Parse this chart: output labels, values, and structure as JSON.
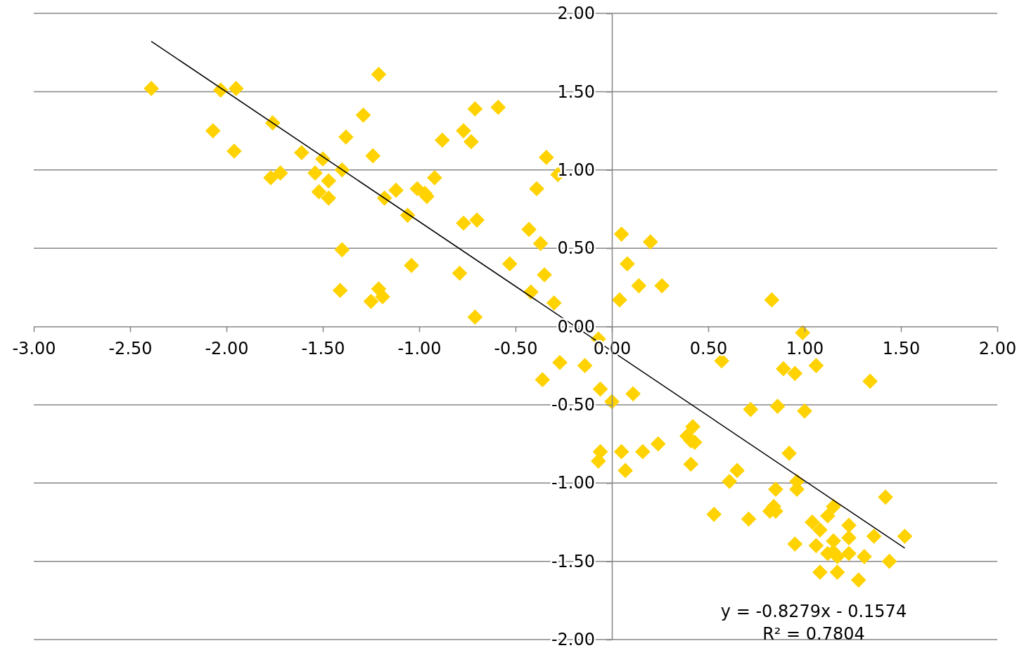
{
  "chart_data": {
    "type": "scatter",
    "marker": "diamond",
    "grid": "y",
    "xlim": [
      -3,
      2
    ],
    "ylim": [
      -2,
      2
    ],
    "xticks": [
      {
        "value": -3,
        "label": "-3.00"
      },
      {
        "value": -2.5,
        "label": "-2.50"
      },
      {
        "value": -2,
        "label": "-2.00"
      },
      {
        "value": -1.5,
        "label": "-1.50"
      },
      {
        "value": -1,
        "label": "-1.00"
      },
      {
        "value": -0.5,
        "label": "-0.50"
      },
      {
        "value": 0,
        "label": "0.00"
      },
      {
        "value": 0.5,
        "label": "0.50"
      },
      {
        "value": 1,
        "label": "1.00"
      },
      {
        "value": 1.5,
        "label": "1.50"
      },
      {
        "value": 2,
        "label": "2.00"
      }
    ],
    "yticks": [
      {
        "value": -2,
        "label": "-2.00"
      },
      {
        "value": -1.5,
        "label": "-1.50"
      },
      {
        "value": -1,
        "label": "-1.00"
      },
      {
        "value": -0.5,
        "label": "-0.50"
      },
      {
        "value": 0,
        "label": "0.00"
      },
      {
        "value": 0.5,
        "label": "0.50"
      },
      {
        "value": 1,
        "label": "1.00"
      },
      {
        "value": 1.5,
        "label": "1.50"
      },
      {
        "value": 2,
        "label": "2.00"
      }
    ],
    "series": [
      {
        "color": "#ffd200",
        "x": [
          -2.39,
          -2.03,
          -1.95,
          -2.07,
          -1.96,
          -1.76,
          -1.77,
          -1.72,
          -1.61,
          -1.54,
          -1.5,
          -1.52,
          -1.47,
          -1.47,
          -1.4,
          -1.38,
          -1.4,
          -1.41,
          -1.29,
          -1.21,
          -1.24,
          -1.18,
          -1.12,
          -1.25,
          -1.21,
          -1.19,
          -1.06,
          -1.04,
          -1.01,
          -0.97,
          -0.96,
          -0.92,
          -0.88,
          -0.77,
          -0.73,
          -0.71,
          -0.77,
          -0.7,
          -0.79,
          -0.71,
          -0.59,
          -0.53,
          -0.43,
          -0.42,
          -0.39,
          -0.37,
          -0.35,
          -0.34,
          -0.28,
          -0.3,
          -0.36,
          -0.27,
          -0.14,
          -0.07,
          -0.06,
          0.0,
          -0.06,
          -0.07,
          0.05,
          0.04,
          0.08,
          0.14,
          0.2,
          0.26,
          0.05,
          0.07,
          0.11,
          0.16,
          0.24,
          0.39,
          0.41,
          0.42,
          0.43,
          0.41,
          0.53,
          0.57,
          0.61,
          0.65,
          0.71,
          0.72,
          0.83,
          0.86,
          0.89,
          0.92,
          0.95,
          0.99,
          1.0,
          1.06,
          0.85,
          0.96,
          0.96,
          0.84,
          0.82,
          0.85,
          0.95,
          1.04,
          1.08,
          1.06,
          1.08,
          1.12,
          1.15,
          1.15,
          1.12,
          1.15,
          1.17,
          1.17,
          1.23,
          1.23,
          1.23,
          1.31,
          1.28,
          1.34,
          1.36,
          1.42,
          1.44,
          1.52
        ],
        "values": [
          1.52,
          1.51,
          1.52,
          1.25,
          1.12,
          1.3,
          0.95,
          0.98,
          1.11,
          0.98,
          1.07,
          0.86,
          0.93,
          0.82,
          1.0,
          1.21,
          0.49,
          0.23,
          1.35,
          1.61,
          1.09,
          0.82,
          0.87,
          0.16,
          0.24,
          0.19,
          0.71,
          0.39,
          0.88,
          0.85,
          0.83,
          0.95,
          1.19,
          1.25,
          1.18,
          1.39,
          0.66,
          0.68,
          0.34,
          0.06,
          1.4,
          0.4,
          0.62,
          0.22,
          0.88,
          0.53,
          0.33,
          1.08,
          0.97,
          0.15,
          -0.34,
          -0.23,
          -0.25,
          -0.08,
          -0.4,
          -0.48,
          -0.8,
          -0.86,
          0.59,
          0.17,
          0.4,
          0.26,
          0.54,
          0.26,
          -0.8,
          -0.92,
          -0.43,
          -0.8,
          -0.75,
          -0.7,
          -0.73,
          -0.64,
          -0.74,
          -0.88,
          -1.2,
          -0.22,
          -0.99,
          -0.92,
          -1.23,
          -0.53,
          0.17,
          -0.51,
          -0.27,
          -0.81,
          -0.3,
          -0.04,
          -0.54,
          -0.25,
          -1.04,
          -0.99,
          -1.04,
          -1.15,
          -1.18,
          -1.18,
          -1.39,
          -1.25,
          -1.3,
          -1.4,
          -1.57,
          -1.21,
          -1.15,
          -1.37,
          -1.45,
          -1.44,
          -1.47,
          -1.57,
          -1.27,
          -1.35,
          -1.45,
          -1.47,
          -1.62,
          -0.35,
          -1.34,
          -1.09,
          -1.5,
          -1.34
        ]
      },
      {
        "type": "line",
        "color": "#000000",
        "marker": "none",
        "x": [
          -2.39,
          1.52
        ],
        "values": [
          1.821,
          -1.416
        ]
      }
    ],
    "annotations": [
      "y = -0.8279x - 0.1574",
      "R² = 0.7804"
    ]
  }
}
